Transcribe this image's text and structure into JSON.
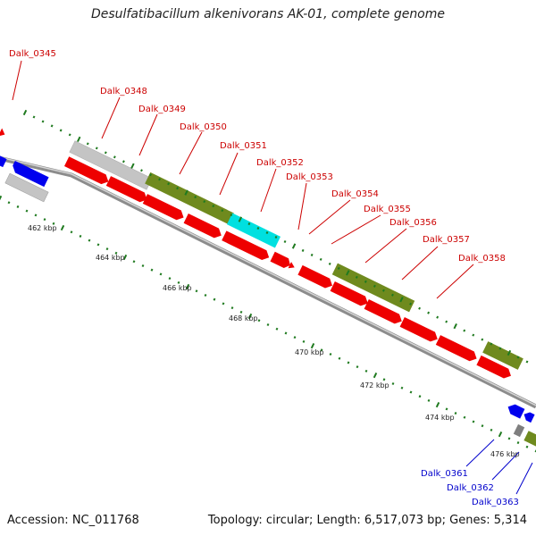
{
  "title": "Desulfatibacillum alkenivorans AK-01, complete genome",
  "accession": "Accession: NC_011768",
  "topology": "Topology: circular; Length: 6,517,073 bp; Genes: 5,314",
  "colors": {
    "backbone": "#8c8c8c",
    "tick": "#1f7a1f",
    "forward_gene": "#ee0000",
    "olive_gene": "#6f8a1e",
    "gray_gene": "#c4c4c4",
    "cyan_gene": "#00e0e0",
    "blue_gene": "#0000ee",
    "label_red": "#cc0000",
    "label_blue": "#0000cc"
  },
  "kbp_labels": [
    "462 kbp",
    "464 kbp",
    "466 kbp",
    "468 kbp",
    "470 kbp",
    "472 kbp",
    "474 kbp",
    "476 kbp"
  ],
  "gene_labels_red": [
    "Dalk_0345",
    "Dalk_0348",
    "Dalk_0349",
    "Dalk_0350",
    "Dalk_0351",
    "Dalk_0352",
    "Dalk_0353",
    "Dalk_0354",
    "Dalk_0355",
    "Dalk_0356",
    "Dalk_0357",
    "Dalk_0358"
  ],
  "gene_labels_blue": [
    "Dalk_0361",
    "Dalk_0362",
    "Dalk_0363"
  ]
}
